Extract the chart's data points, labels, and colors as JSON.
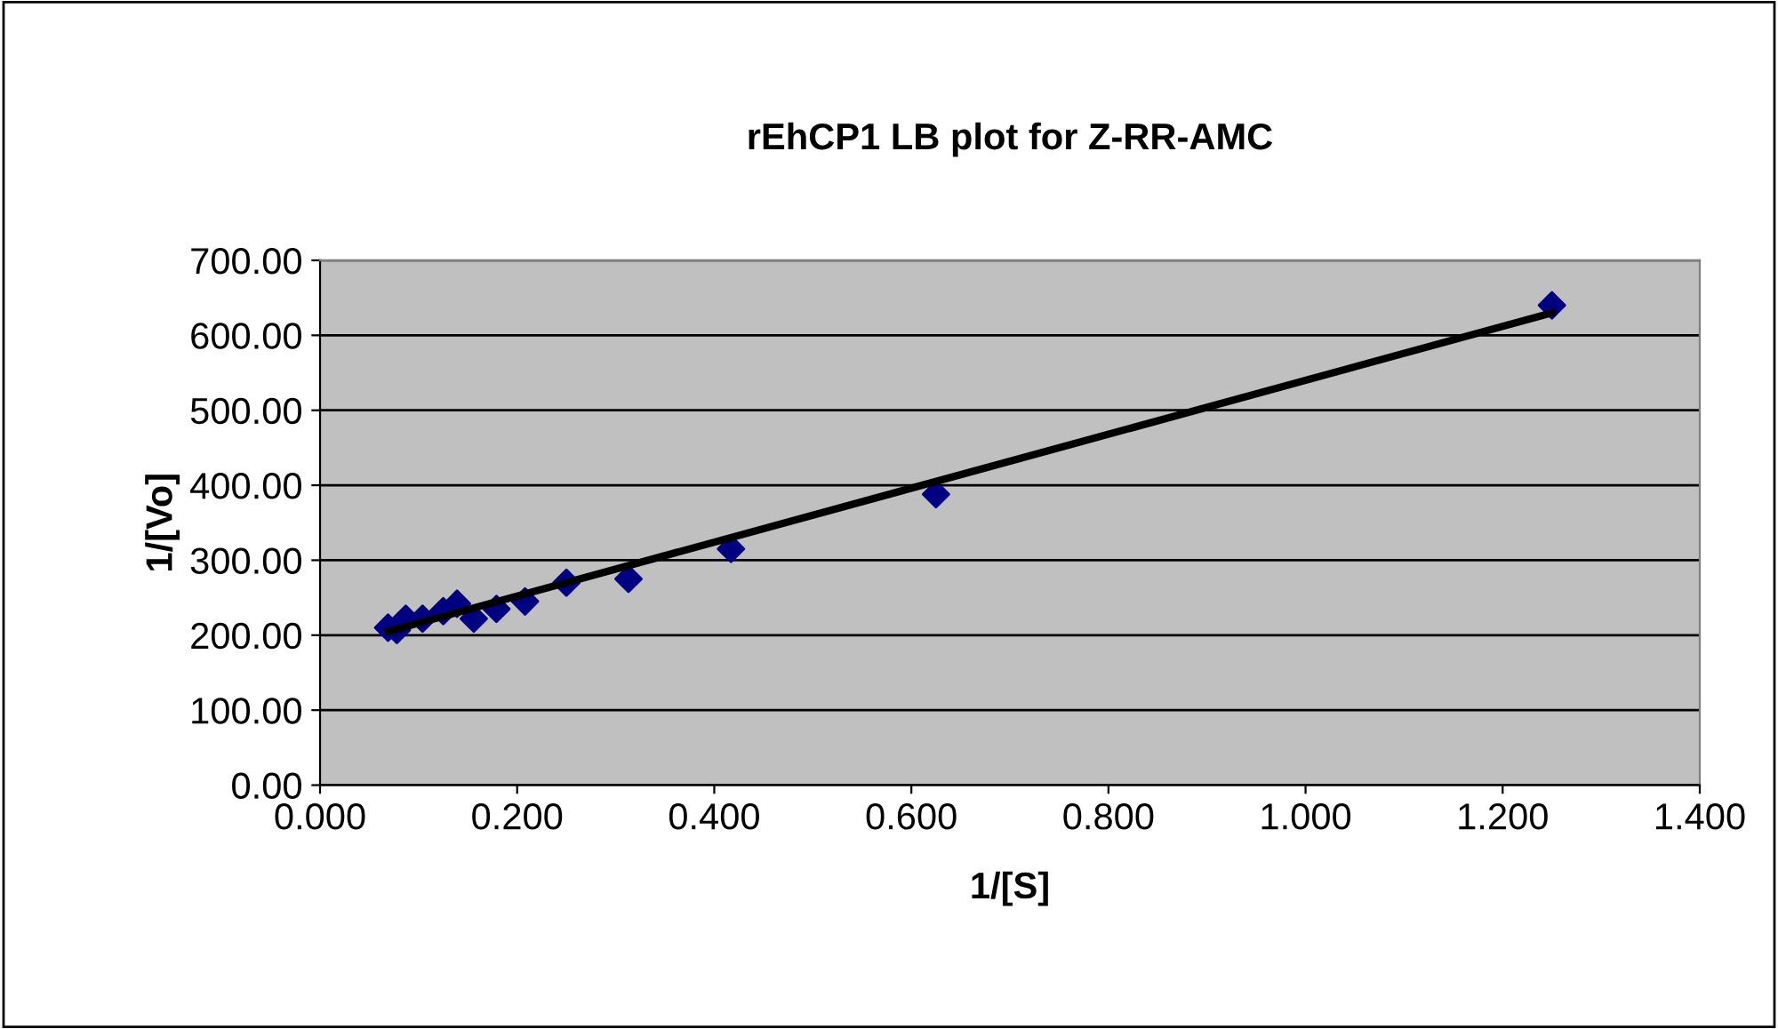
{
  "chart_data": {
    "type": "scatter",
    "title": "rEhCP1 LB plot for Z-RR-AMC",
    "xlabel": "1/[S]",
    "ylabel": "1/[Vo]",
    "xlim": [
      0,
      1.4
    ],
    "xticks": [
      {
        "value": 0,
        "label": "0.000"
      },
      {
        "value": 0.2,
        "label": "0.200"
      },
      {
        "value": 0.4,
        "label": "0.400"
      },
      {
        "value": 0.6,
        "label": "0.600"
      },
      {
        "value": 0.8,
        "label": "0.800"
      },
      {
        "value": 1.0,
        "label": "1.000"
      },
      {
        "value": 1.2,
        "label": "1.200"
      },
      {
        "value": 1.4,
        "label": "1.400"
      }
    ],
    "ylim": [
      0,
      700
    ],
    "yticks": [
      {
        "value": 0,
        "label": "0.00"
      },
      {
        "value": 100,
        "label": "100.00"
      },
      {
        "value": 200,
        "label": "200.00"
      },
      {
        "value": 300,
        "label": "300.00"
      },
      {
        "value": 400,
        "label": "400.00"
      },
      {
        "value": 500,
        "label": "500.00"
      },
      {
        "value": 600,
        "label": "600.00"
      },
      {
        "value": 700,
        "label": "700.00"
      }
    ],
    "grid": "y",
    "legend": false,
    "series": [
      {
        "color": "#000080",
        "marker": "diamond",
        "x": [
          0.069,
          0.078,
          0.087,
          0.104,
          0.125,
          0.139,
          0.156,
          0.179,
          0.208,
          0.25,
          0.313,
          0.417,
          0.625,
          1.25
        ],
        "values": [
          210,
          207,
          222,
          222,
          232,
          242,
          222,
          235,
          245,
          270,
          275,
          315,
          388,
          640
        ]
      },
      {
        "type": "line",
        "color": "#000000",
        "marker": "none",
        "x": [
          0.069,
          1.25
        ],
        "values": [
          205,
          630
        ]
      }
    ]
  }
}
